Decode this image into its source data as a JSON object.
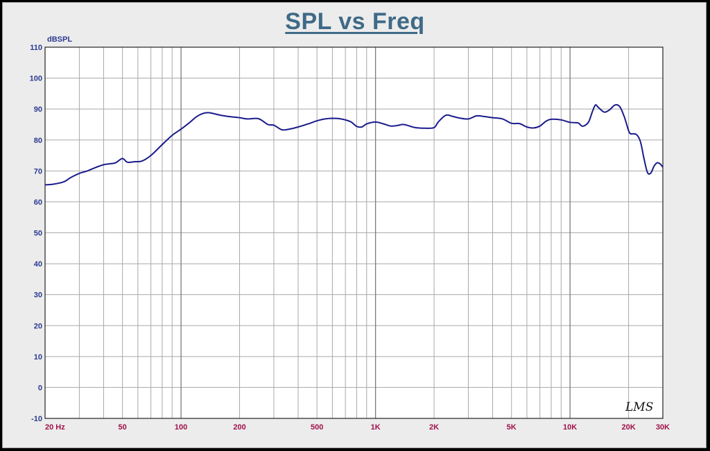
{
  "chart_data": {
    "type": "line",
    "title": "SPL vs Freq",
    "ylabel": "dBSPL",
    "xlabel": "",
    "x_scale": "log",
    "xlim": [
      20,
      30000
    ],
    "ylim": [
      -10,
      110
    ],
    "y_ticks": [
      110,
      100,
      90,
      80,
      70,
      60,
      50,
      40,
      30,
      20,
      10,
      0,
      -10
    ],
    "x_ticks": [
      {
        "value": 20,
        "label": "20  Hz"
      },
      {
        "value": 50,
        "label": "50"
      },
      {
        "value": 100,
        "label": "100"
      },
      {
        "value": 200,
        "label": "200"
      },
      {
        "value": 500,
        "label": "500"
      },
      {
        "value": 1000,
        "label": "1K"
      },
      {
        "value": 2000,
        "label": "2K"
      },
      {
        "value": 5000,
        "label": "5K"
      },
      {
        "value": 10000,
        "label": "10K"
      },
      {
        "value": 20000,
        "label": "20K"
      },
      {
        "value": 30000,
        "label": "30K"
      }
    ],
    "grid": true,
    "watermark": "LMS",
    "colors": {
      "line": "#1a1a8c",
      "grid": "#a8a8a8",
      "y_tick_text": "#2a3a90",
      "x_tick_text": "#a0104a",
      "title": "#3f6a87",
      "background": "#ececec",
      "plot_background": "#ffffff"
    },
    "series": [
      {
        "x": [
          20,
          22,
          25,
          27,
          30,
          33,
          36,
          40,
          43,
          46,
          50,
          53,
          58,
          63,
          70,
          80,
          90,
          100,
          110,
          120,
          130,
          140,
          160,
          180,
          200,
          220,
          250,
          280,
          300,
          330,
          360,
          400,
          450,
          500,
          550,
          600,
          650,
          700,
          750,
          800,
          850,
          900,
          1000,
          1100,
          1200,
          1300,
          1400,
          1600,
          1800,
          2000,
          2100,
          2300,
          2500,
          2700,
          3000,
          3300,
          3600,
          4000,
          4500,
          5000,
          5500,
          6000,
          6500,
          7000,
          7500,
          8000,
          9000,
          10000,
          11000,
          11500,
          12000,
          12500,
          13000,
          13500,
          14000,
          15000,
          16000,
          17000,
          18000,
          19000,
          20000,
          20500,
          21000,
          22000,
          23000,
          24000,
          25000,
          26000,
          27000,
          28000,
          29000,
          30000
        ],
        "y": [
          65.5,
          65.7,
          66.5,
          67.8,
          69.2,
          70.0,
          71.0,
          72.0,
          72.3,
          72.6,
          74.0,
          72.8,
          73.0,
          73.2,
          75.0,
          78.5,
          81.5,
          83.5,
          85.5,
          87.5,
          88.6,
          88.8,
          88.0,
          87.5,
          87.2,
          86.8,
          86.9,
          85.0,
          84.8,
          83.3,
          83.5,
          84.2,
          85.2,
          86.2,
          86.8,
          87.0,
          86.9,
          86.5,
          85.8,
          84.4,
          84.2,
          85.2,
          85.8,
          85.2,
          84.5,
          84.7,
          85.0,
          84.0,
          83.8,
          84.0,
          85.8,
          88.0,
          87.6,
          87.1,
          86.8,
          87.8,
          87.6,
          87.2,
          86.8,
          85.4,
          85.3,
          84.2,
          83.9,
          84.5,
          86.0,
          86.7,
          86.5,
          85.7,
          85.5,
          84.5,
          84.8,
          86.0,
          89.0,
          91.3,
          90.5,
          89.0,
          89.8,
          91.3,
          90.8,
          87.5,
          83.0,
          82.0,
          82.0,
          81.7,
          79.5,
          74.0,
          69.5,
          69.3,
          71.5,
          72.6,
          72.3,
          71.2
        ]
      }
    ]
  }
}
